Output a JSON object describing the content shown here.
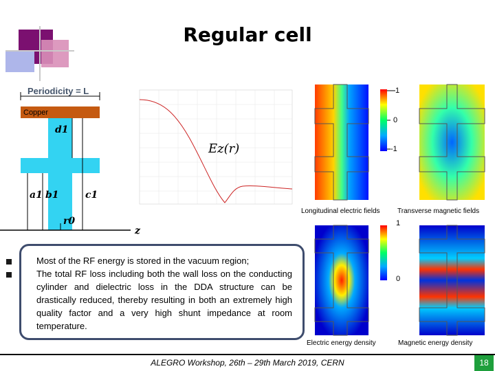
{
  "slide": {
    "title": "Regular cell",
    "footer": "ALEGRO Workshop, 26th – 29th March 2019, CERN",
    "page_number": "18"
  },
  "geometry_figure": {
    "periodicity_label": "Periodicity = L",
    "material_label": "Copper",
    "d_label": "d1",
    "a_label": "a1",
    "b_label": "b1",
    "c_label": "c1",
    "r_label": "r0",
    "axis_label": "z"
  },
  "field_plot": {
    "curve_label": "Ez(r)"
  },
  "field_maps": {
    "longitudinal_label": "Longitudinal electric fields",
    "transverse_label": "Transverse magnetic fields",
    "electric_energy_label": "Electric energy density",
    "magnetic_energy_label": "Magnetic energy density",
    "top_colorbar_ticks": [
      "1",
      "0",
      "-1"
    ],
    "bottom_colorbar_ticks": [
      "1",
      "0"
    ]
  },
  "bullets": [
    "Most of the RF energy is stored in the vacuum region;",
    "The total RF loss including both the wall loss on the conducting cylinder and dielectric loss in the DDA structure can be drastically reduced, thereby resulting in both an extremely high quality factor and a very high shunt impedance at room temperature."
  ]
}
